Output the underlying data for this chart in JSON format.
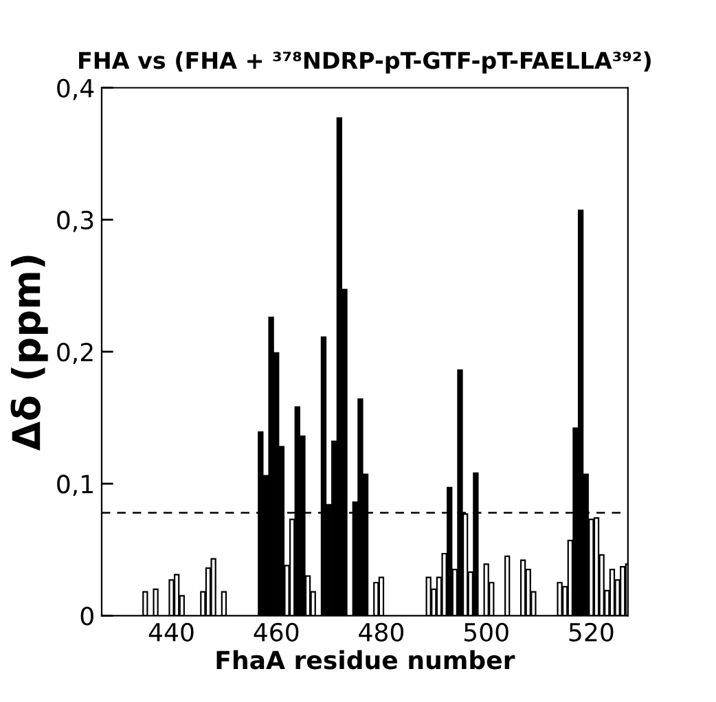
{
  "chart_data": {
    "type": "bar",
    "title": "FHA vs (FHA + ³⁷⁸NDRP-pT-GTF-pT-FAELLA³⁹²)",
    "xlabel": "FhaA residue number",
    "ylabel": "Δδ (ppm)",
    "x": [
      435,
      437,
      440,
      441,
      442,
      446,
      447,
      448,
      450,
      457,
      458,
      459,
      460,
      461,
      462,
      463,
      464,
      465,
      466,
      467,
      469,
      470,
      471,
      472,
      473,
      475,
      476,
      477,
      479,
      480,
      489,
      490,
      491,
      492,
      493,
      494,
      495,
      496,
      497,
      498,
      500,
      501,
      504,
      507,
      508,
      509,
      514,
      515,
      516,
      517,
      518,
      519,
      520,
      521,
      522,
      523,
      524,
      525,
      526,
      527
    ],
    "values": [
      0.018,
      0.02,
      0.027,
      0.031,
      0.015,
      0.018,
      0.036,
      0.043,
      0.018,
      0.139,
      0.106,
      0.226,
      0.199,
      0.128,
      0.038,
      0.073,
      0.158,
      0.136,
      0.03,
      0.018,
      0.211,
      0.084,
      0.132,
      0.377,
      0.247,
      0.086,
      0.164,
      0.107,
      0.025,
      0.029,
      0.029,
      0.02,
      0.029,
      0.047,
      0.097,
      0.035,
      0.186,
      0.077,
      0.033,
      0.108,
      0.039,
      0.025,
      0.045,
      0.042,
      0.035,
      0.018,
      0.025,
      0.022,
      0.057,
      0.142,
      0.307,
      0.107,
      0.073,
      0.074,
      0.046,
      0.019,
      0.035,
      0.027,
      0.037,
      0.039
    ],
    "colors": [
      "#ffffff",
      "#ffffff",
      "#ffffff",
      "#ffffff",
      "#ffffff",
      "#ffffff",
      "#ffffff",
      "#ffffff",
      "#ffffff",
      "#000000",
      "#000000",
      "#000000",
      "#000000",
      "#000000",
      "#ffffff",
      "#ffffff",
      "#000000",
      "#000000",
      "#ffffff",
      "#ffffff",
      "#000000",
      "#000000",
      "#000000",
      "#000000",
      "#000000",
      "#000000",
      "#000000",
      "#000000",
      "#ffffff",
      "#ffffff",
      "#ffffff",
      "#ffffff",
      "#ffffff",
      "#ffffff",
      "#000000",
      "#ffffff",
      "#000000",
      "#ffffff",
      "#ffffff",
      "#000000",
      "#ffffff",
      "#ffffff",
      "#ffffff",
      "#ffffff",
      "#ffffff",
      "#ffffff",
      "#ffffff",
      "#ffffff",
      "#ffffff",
      "#000000",
      "#000000",
      "#000000",
      "#ffffff",
      "#ffffff",
      "#ffffff",
      "#ffffff",
      "#ffffff",
      "#ffffff",
      "#ffffff",
      "#ffffff"
    ],
    "xlim": [
      426.7,
      527
    ],
    "xticks": [
      440,
      460,
      480,
      500,
      520
    ],
    "ylim": [
      0,
      0.4
    ],
    "yticks": [
      0,
      {
        "value": 0.1,
        "label": "0,1"
      },
      {
        "value": 0.2,
        "label": "0,2"
      },
      {
        "value": 0.3,
        "label": "0,3"
      },
      {
        "value": 0.4,
        "label": "0,4"
      }
    ],
    "ref_lines": [
      {
        "axis": "y",
        "value": 0.078,
        "color": "#000000",
        "line_style": "dashed"
      }
    ],
    "grid": false,
    "legend": false
  }
}
